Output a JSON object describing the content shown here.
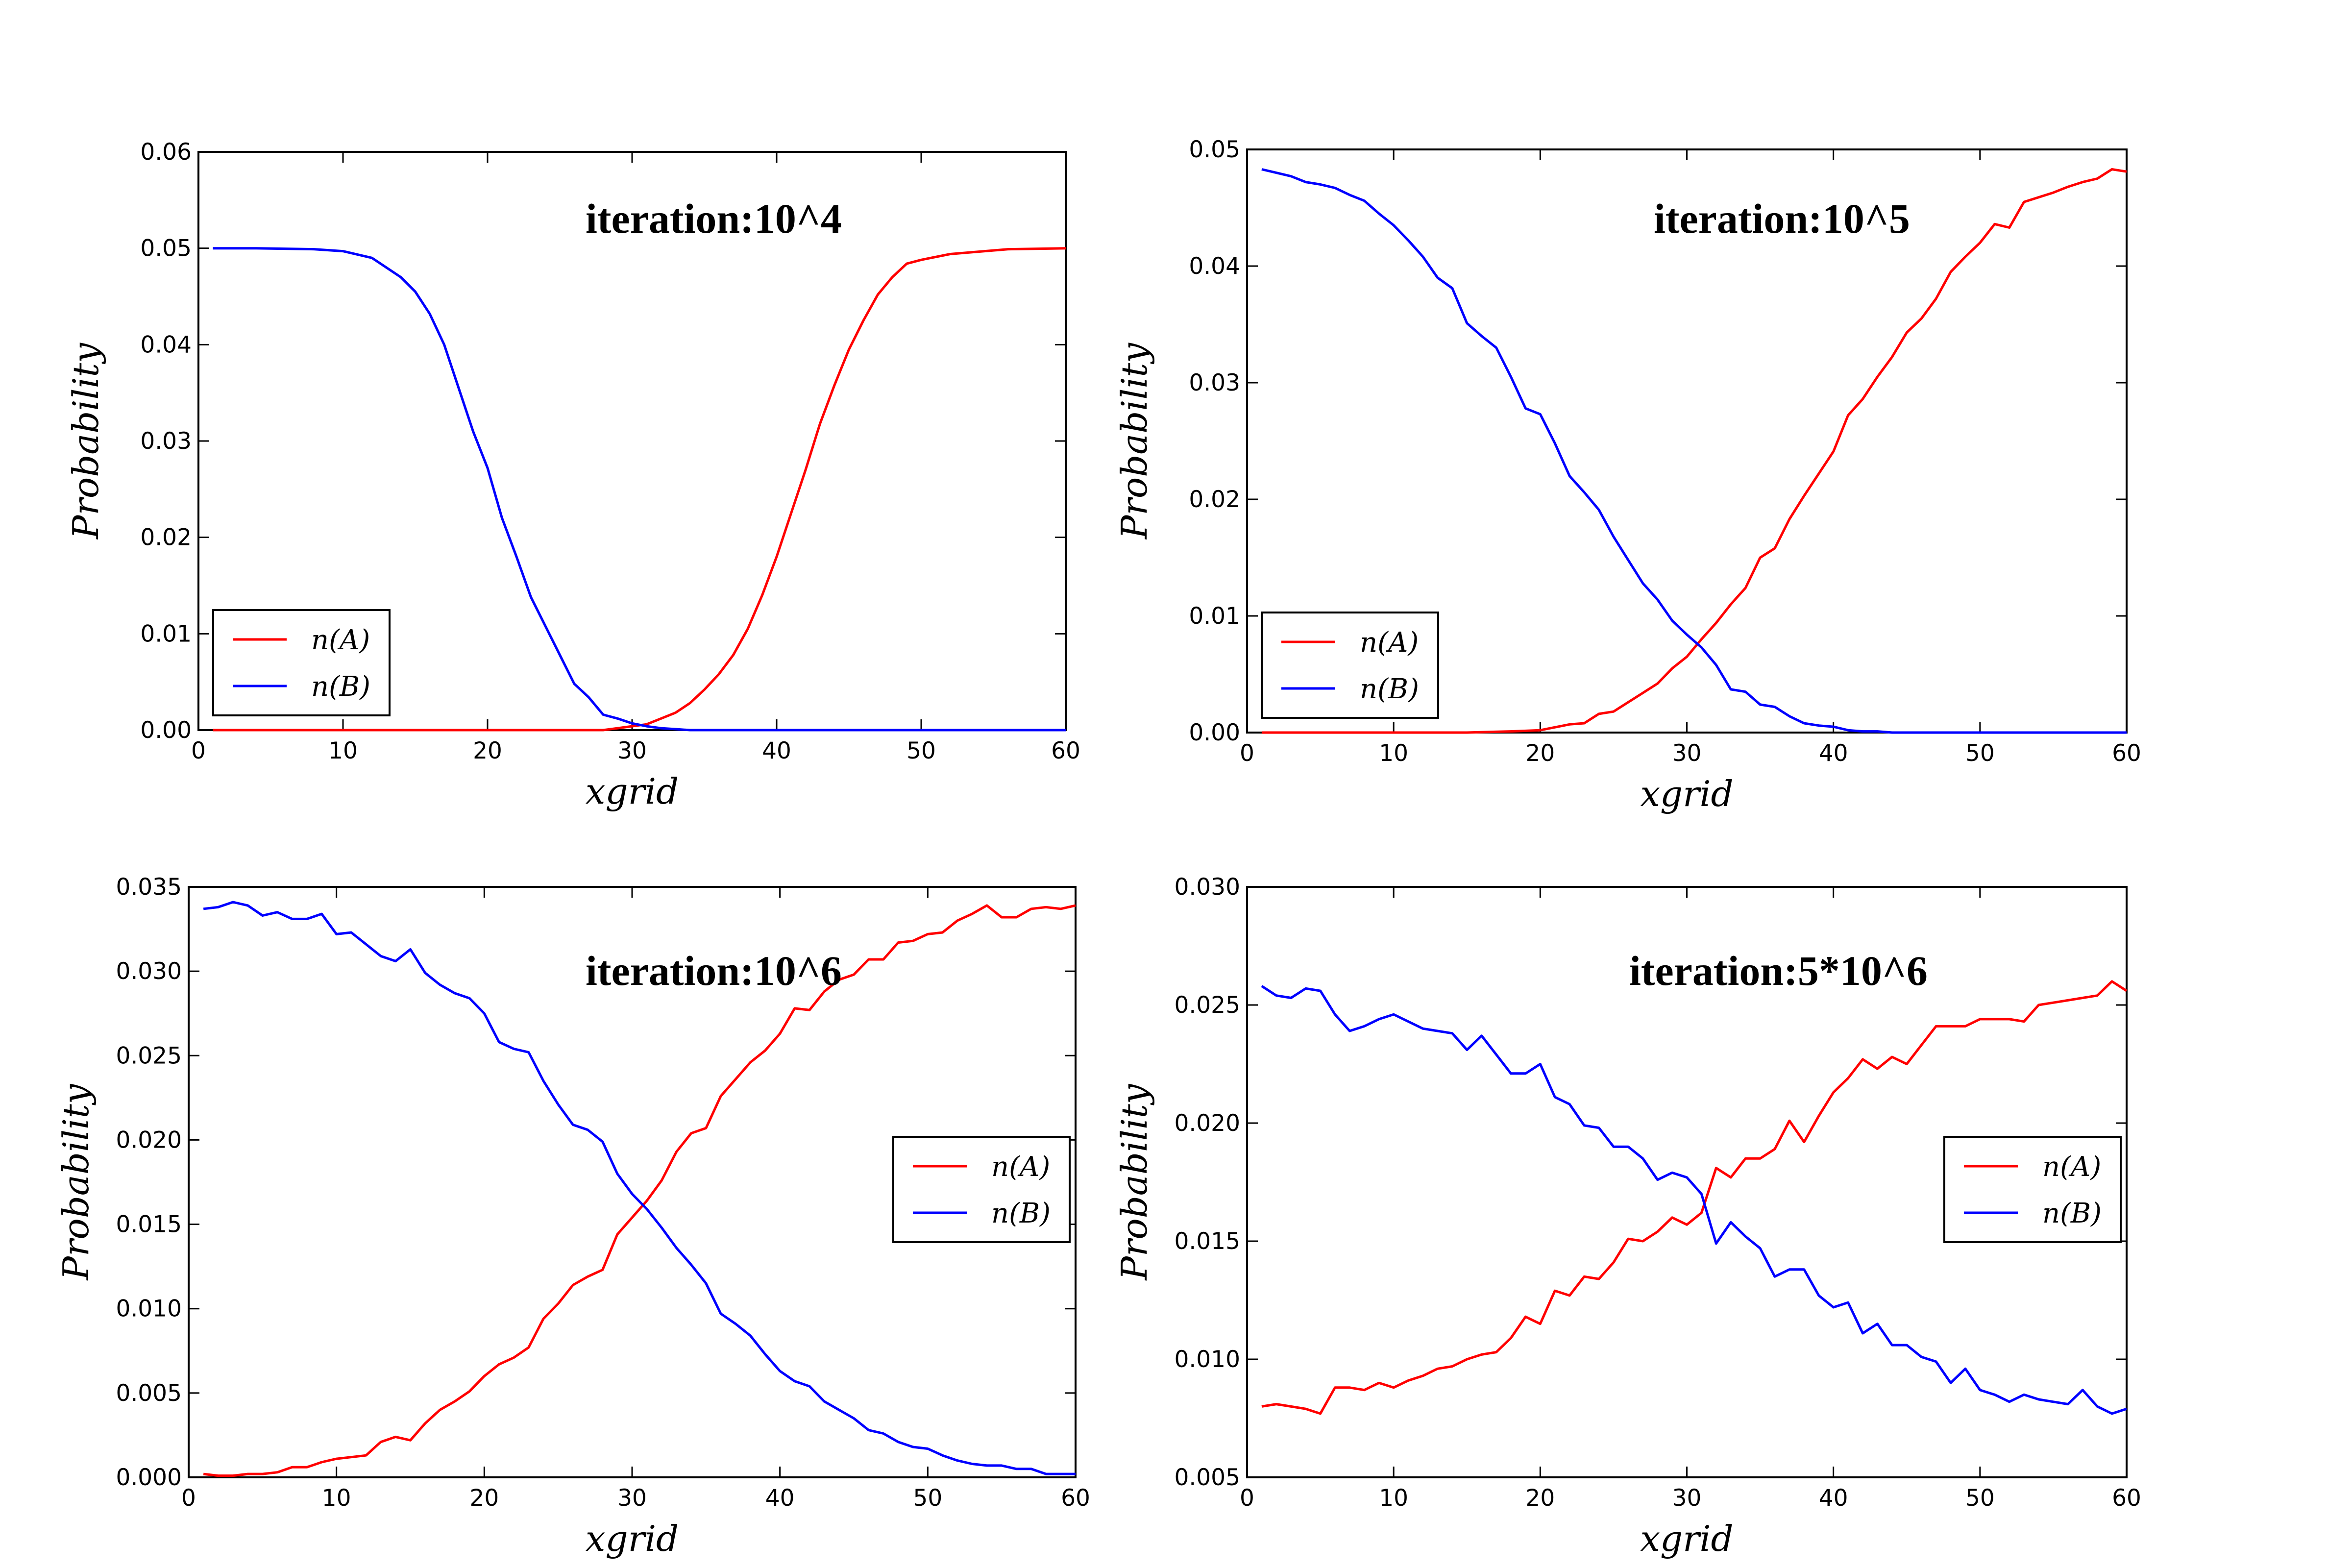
{
  "colors": {
    "n_A": "#ff0000",
    "n_B": "#0000ff",
    "axes": "#000000"
  },
  "chart_data": [
    {
      "type": "line",
      "annotation": "iteration:10^4",
      "xlabel": "xgrid",
      "ylabel": "Probability",
      "xlim": [
        0,
        60
      ],
      "ylim": [
        0,
        0.06
      ],
      "xticks": [
        "0",
        "10",
        "20",
        "30",
        "40",
        "50",
        "60"
      ],
      "yticks": [
        "0.00",
        "0.01",
        "0.02",
        "0.03",
        "0.04",
        "0.05",
        "0.06"
      ],
      "legend_position": "lower-left",
      "series": [
        {
          "name": "n(A)",
          "color": "#ff0000",
          "x": [
            1,
            4,
            8,
            12,
            16,
            20,
            24,
            26,
            28,
            29,
            30,
            31,
            32,
            33,
            34,
            35,
            36,
            37,
            38,
            39,
            40,
            41,
            42,
            43,
            44,
            45,
            46,
            47,
            48,
            49,
            50,
            52,
            56,
            60
          ],
          "y": [
            0,
            0,
            0,
            0,
            0,
            0,
            0,
            0,
            0,
            0.0002,
            0.0004,
            0.0006,
            0.0012,
            0.0018,
            0.0028,
            0.0042,
            0.0058,
            0.0078,
            0.0105,
            0.014,
            0.018,
            0.0225,
            0.027,
            0.0318,
            0.0358,
            0.0395,
            0.0425,
            0.0452,
            0.047,
            0.0484,
            0.0488,
            0.0494,
            0.0499,
            0.05
          ]
        },
        {
          "name": "n(B)",
          "color": "#0000ff",
          "x": [
            1,
            4,
            8,
            10,
            12,
            14,
            15,
            16,
            17,
            18,
            19,
            20,
            21,
            22,
            23,
            24,
            25,
            26,
            27,
            28,
            29,
            30,
            31,
            32,
            33,
            34,
            36,
            40,
            60
          ],
          "y": [
            0.05,
            0.05,
            0.0499,
            0.0497,
            0.049,
            0.047,
            0.0455,
            0.0432,
            0.04,
            0.0355,
            0.031,
            0.0272,
            0.022,
            0.018,
            0.0138,
            0.0108,
            0.0078,
            0.0048,
            0.0034,
            0.0016,
            0.0012,
            0.0007,
            0.0004,
            0.0002,
            0.0001,
            0,
            0,
            0,
            0
          ]
        }
      ]
    },
    {
      "type": "line",
      "annotation": "iteration:10^5",
      "xlabel": "xgrid",
      "ylabel": "Probability",
      "xlim": [
        0,
        60
      ],
      "ylim": [
        0,
        0.05
      ],
      "xticks": [
        "0",
        "10",
        "20",
        "30",
        "40",
        "50",
        "60"
      ],
      "yticks": [
        "0.00",
        "0.01",
        "0.02",
        "0.03",
        "0.04",
        "0.05"
      ],
      "legend_position": "lower-left",
      "series": [
        {
          "name": "n(A)",
          "color": "#ff0000",
          "x": [
            1,
            10,
            15,
            18,
            20,
            22,
            23,
            24,
            25,
            26,
            27,
            28,
            29,
            30,
            31,
            32,
            33,
            34,
            35,
            36,
            37,
            38,
            39,
            40,
            41,
            42,
            43,
            44,
            45,
            46,
            47,
            48,
            49,
            50,
            51,
            52,
            53,
            54,
            55,
            56,
            57,
            58,
            59,
            60
          ],
          "y": [
            0,
            0,
            0,
            0.0001,
            0.0002,
            0.0007,
            0.0008,
            0.0016,
            0.0018,
            0.0026,
            0.0034,
            0.0042,
            0.0055,
            0.0065,
            0.008,
            0.0094,
            0.011,
            0.0124,
            0.015,
            0.0158,
            0.0183,
            0.0203,
            0.0222,
            0.0241,
            0.0272,
            0.0286,
            0.0305,
            0.0322,
            0.0343,
            0.0355,
            0.0372,
            0.0395,
            0.0408,
            0.042,
            0.0436,
            0.0433,
            0.0455,
            0.0459,
            0.0463,
            0.0468,
            0.0472,
            0.0475,
            0.0483,
            0.0481
          ]
        },
        {
          "name": "n(B)",
          "color": "#0000ff",
          "x": [
            1,
            2,
            3,
            4,
            5,
            6,
            7,
            8,
            9,
            10,
            11,
            12,
            13,
            14,
            15,
            16,
            17,
            18,
            19,
            20,
            21,
            22,
            23,
            24,
            25,
            26,
            27,
            28,
            29,
            30,
            31,
            32,
            33,
            34,
            35,
            36,
            37,
            38,
            39,
            40,
            41,
            42,
            43,
            44,
            45,
            60
          ],
          "y": [
            0.0483,
            0.048,
            0.0477,
            0.0472,
            0.047,
            0.0467,
            0.0461,
            0.0456,
            0.0445,
            0.0435,
            0.0422,
            0.0408,
            0.039,
            0.0381,
            0.0351,
            0.034,
            0.033,
            0.0305,
            0.0278,
            0.0273,
            0.0248,
            0.022,
            0.0206,
            0.0191,
            0.0168,
            0.0148,
            0.0128,
            0.0114,
            0.0096,
            0.0084,
            0.0073,
            0.0058,
            0.0037,
            0.0035,
            0.0024,
            0.0022,
            0.0014,
            0.0008,
            0.0006,
            0.0005,
            0.0002,
            0.0001,
            0.0001,
            0,
            0,
            0
          ]
        }
      ]
    },
    {
      "type": "line",
      "annotation": "iteration:10^6",
      "xlabel": "xgrid",
      "ylabel": "Probability",
      "xlim": [
        0,
        60
      ],
      "ylim": [
        0,
        0.035
      ],
      "xticks": [
        "0",
        "10",
        "20",
        "30",
        "40",
        "50",
        "60"
      ],
      "yticks": [
        "0.000",
        "0.005",
        "0.010",
        "0.015",
        "0.020",
        "0.025",
        "0.030",
        "0.035"
      ],
      "legend_position": "center-right",
      "series": [
        {
          "name": "n(A)",
          "color": "#ff0000",
          "x": [
            1,
            2,
            3,
            4,
            5,
            6,
            7,
            8,
            9,
            10,
            11,
            12,
            13,
            14,
            15,
            16,
            17,
            18,
            19,
            20,
            21,
            22,
            23,
            24,
            25,
            26,
            27,
            28,
            29,
            30,
            31,
            32,
            33,
            34,
            35,
            36,
            37,
            38,
            39,
            40,
            41,
            42,
            43,
            44,
            45,
            46,
            47,
            48,
            49,
            50,
            51,
            52,
            53,
            54,
            55,
            56,
            57,
            58,
            59,
            60
          ],
          "y": [
            0.0002,
            0.0001,
            0.0001,
            0.0002,
            0.0002,
            0.0003,
            0.0006,
            0.0006,
            0.0009,
            0.0011,
            0.0012,
            0.0013,
            0.0021,
            0.0024,
            0.0022,
            0.0032,
            0.004,
            0.0045,
            0.0051,
            0.006,
            0.0067,
            0.0071,
            0.0077,
            0.0094,
            0.0103,
            0.0114,
            0.0119,
            0.0123,
            0.0144,
            0.0154,
            0.0164,
            0.0176,
            0.0193,
            0.0204,
            0.0207,
            0.0226,
            0.0236,
            0.0246,
            0.0253,
            0.0263,
            0.0278,
            0.0277,
            0.0288,
            0.0295,
            0.0298,
            0.0307,
            0.0307,
            0.0317,
            0.0318,
            0.0322,
            0.0323,
            0.033,
            0.0334,
            0.0339,
            0.0332,
            0.0332,
            0.0337,
            0.0338,
            0.0337,
            0.0339
          ]
        },
        {
          "name": "n(B)",
          "color": "#0000ff",
          "x": [
            1,
            2,
            3,
            4,
            5,
            6,
            7,
            8,
            9,
            10,
            11,
            12,
            13,
            14,
            15,
            16,
            17,
            18,
            19,
            20,
            21,
            22,
            23,
            24,
            25,
            26,
            27,
            28,
            29,
            30,
            31,
            32,
            33,
            34,
            35,
            36,
            37,
            38,
            39,
            40,
            41,
            42,
            43,
            44,
            45,
            46,
            47,
            48,
            49,
            50,
            51,
            52,
            53,
            54,
            55,
            56,
            57,
            58,
            59,
            60
          ],
          "y": [
            0.0337,
            0.0338,
            0.0341,
            0.0339,
            0.0333,
            0.0335,
            0.0331,
            0.0331,
            0.0334,
            0.0322,
            0.0323,
            0.0316,
            0.0309,
            0.0306,
            0.0313,
            0.0299,
            0.0292,
            0.0287,
            0.0284,
            0.0275,
            0.0258,
            0.0254,
            0.0252,
            0.0235,
            0.0221,
            0.0209,
            0.0206,
            0.0199,
            0.018,
            0.0168,
            0.0159,
            0.0148,
            0.0136,
            0.0126,
            0.0115,
            0.0097,
            0.0091,
            0.0084,
            0.0073,
            0.0063,
            0.0057,
            0.0054,
            0.0045,
            0.004,
            0.0035,
            0.0028,
            0.0026,
            0.0021,
            0.0018,
            0.0017,
            0.0013,
            0.001,
            0.0008,
            0.0007,
            0.0007,
            0.0005,
            0.0005,
            0.0002,
            0.0002,
            0.0002
          ]
        }
      ]
    },
    {
      "type": "line",
      "annotation": "iteration:5*10^6",
      "xlabel": "xgrid",
      "ylabel": "Probability",
      "xlim": [
        0,
        60
      ],
      "ylim": [
        0.005,
        0.03
      ],
      "xticks": [
        "0",
        "10",
        "20",
        "30",
        "40",
        "50",
        "60"
      ],
      "yticks": [
        "0.005",
        "0.010",
        "0.015",
        "0.020",
        "0.025",
        "0.030"
      ],
      "legend_position": "center-right",
      "series": [
        {
          "name": "n(A)",
          "color": "#ff0000",
          "x": [
            1,
            2,
            3,
            4,
            5,
            6,
            7,
            8,
            9,
            10,
            11,
            12,
            13,
            14,
            15,
            16,
            17,
            18,
            19,
            20,
            21,
            22,
            23,
            24,
            25,
            26,
            27,
            28,
            29,
            30,
            31,
            32,
            33,
            34,
            35,
            36,
            37,
            38,
            39,
            40,
            41,
            42,
            43,
            44,
            45,
            46,
            47,
            48,
            49,
            50,
            51,
            52,
            53,
            54,
            55,
            56,
            57,
            58,
            59,
            60
          ],
          "y": [
            0.008,
            0.0081,
            0.008,
            0.0079,
            0.0077,
            0.0088,
            0.0088,
            0.0087,
            0.009,
            0.0088,
            0.0091,
            0.0093,
            0.0096,
            0.0097,
            0.01,
            0.0102,
            0.0103,
            0.0109,
            0.0118,
            0.0115,
            0.0129,
            0.0127,
            0.0135,
            0.0134,
            0.0141,
            0.0151,
            0.015,
            0.0154,
            0.016,
            0.0157,
            0.0162,
            0.0181,
            0.0177,
            0.0185,
            0.0185,
            0.0189,
            0.0201,
            0.0192,
            0.0203,
            0.0213,
            0.0219,
            0.0227,
            0.0223,
            0.0228,
            0.0225,
            0.0233,
            0.0241,
            0.0241,
            0.0241,
            0.0244,
            0.0244,
            0.0244,
            0.0243,
            0.025,
            0.0251,
            0.0252,
            0.0253,
            0.0254,
            0.026,
            0.0256
          ]
        },
        {
          "name": "n(B)",
          "color": "#0000ff",
          "x": [
            1,
            2,
            3,
            4,
            5,
            6,
            7,
            8,
            9,
            10,
            11,
            12,
            13,
            14,
            15,
            16,
            17,
            18,
            19,
            20,
            21,
            22,
            23,
            24,
            25,
            26,
            27,
            28,
            29,
            30,
            31,
            32,
            33,
            34,
            35,
            36,
            37,
            38,
            39,
            40,
            41,
            42,
            43,
            44,
            45,
            46,
            47,
            48,
            49,
            50,
            51,
            52,
            53,
            54,
            55,
            56,
            57,
            58,
            59,
            60
          ],
          "y": [
            0.0258,
            0.0254,
            0.0253,
            0.0257,
            0.0256,
            0.0246,
            0.0239,
            0.0241,
            0.0244,
            0.0246,
            0.0243,
            0.024,
            0.0239,
            0.0238,
            0.0231,
            0.0237,
            0.0229,
            0.0221,
            0.0221,
            0.0225,
            0.0211,
            0.0208,
            0.0199,
            0.0198,
            0.019,
            0.019,
            0.0185,
            0.0176,
            0.0179,
            0.0177,
            0.017,
            0.0149,
            0.0158,
            0.0152,
            0.0147,
            0.0135,
            0.0138,
            0.0138,
            0.0127,
            0.0122,
            0.0124,
            0.0111,
            0.0115,
            0.0106,
            0.0106,
            0.0101,
            0.0099,
            0.009,
            0.0096,
            0.0087,
            0.0085,
            0.0082,
            0.0085,
            0.0083,
            0.0082,
            0.0081,
            0.0087,
            0.008,
            0.0077,
            0.0079
          ]
        }
      ]
    }
  ]
}
